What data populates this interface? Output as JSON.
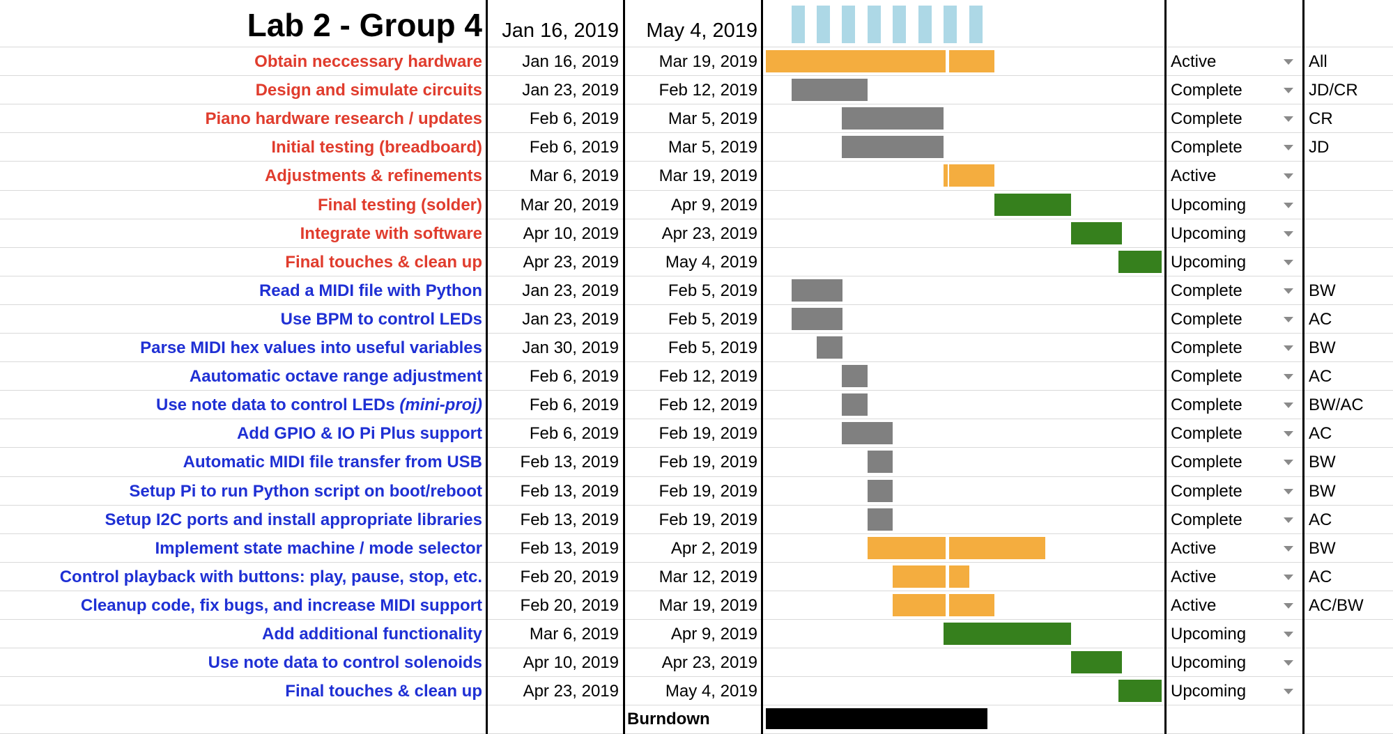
{
  "title": "Lab 2 - Group 4",
  "header": {
    "start_date": "Jan 16, 2019",
    "end_date": "May 4, 2019"
  },
  "colors": {
    "active": "#f4ad3f",
    "complete": "#808080",
    "upcoming": "#36801d",
    "timeline": "#add8e6",
    "red_task": "#e03c2d",
    "blue_task": "#1f30d4"
  },
  "tasks": [
    {
      "name": "Obtain neccessary hardware",
      "color": "red",
      "start": "Jan 16, 2019",
      "end": "Mar 19, 2019",
      "status": "Active",
      "owner": "All"
    },
    {
      "name": "Design and simulate circuits",
      "color": "red",
      "start": "Jan 23, 2019",
      "end": "Feb 12, 2019",
      "status": "Complete",
      "owner": "JD/CR"
    },
    {
      "name": "Piano hardware research / updates",
      "color": "red",
      "start": "Feb 6, 2019",
      "end": "Mar 5, 2019",
      "status": "Complete",
      "owner": "CR"
    },
    {
      "name": "Initial testing (breadboard)",
      "color": "red",
      "start": "Feb 6, 2019",
      "end": "Mar 5, 2019",
      "status": "Complete",
      "owner": "JD"
    },
    {
      "name": "Adjustments & refinements",
      "color": "red",
      "start": "Mar 6, 2019",
      "end": "Mar 19, 2019",
      "status": "Active",
      "owner": ""
    },
    {
      "name": "Final testing (solder)",
      "color": "red",
      "start": "Mar 20, 2019",
      "end": "Apr 9, 2019",
      "status": "Upcoming",
      "owner": ""
    },
    {
      "name": "Integrate with software",
      "color": "red",
      "start": "Apr 10, 2019",
      "end": "Apr 23, 2019",
      "status": "Upcoming",
      "owner": ""
    },
    {
      "name": "Final touches & clean up",
      "color": "red",
      "start": "Apr 23, 2019",
      "end": "May 4, 2019",
      "status": "Upcoming",
      "owner": ""
    },
    {
      "name": "Read a MIDI file with Python",
      "color": "blue",
      "start": "Jan 23, 2019",
      "end": "Feb 5, 2019",
      "status": "Complete",
      "owner": "BW"
    },
    {
      "name": "Use BPM to control LEDs",
      "color": "blue",
      "start": "Jan 23, 2019",
      "end": "Feb 5, 2019",
      "status": "Complete",
      "owner": "AC"
    },
    {
      "name": "Parse MIDI hex values into useful variables",
      "color": "blue",
      "start": "Jan 30, 2019",
      "end": "Feb 5, 2019",
      "status": "Complete",
      "owner": "BW"
    },
    {
      "name": "Aautomatic octave range adjustment",
      "color": "blue",
      "start": "Feb 6, 2019",
      "end": "Feb 12, 2019",
      "status": "Complete",
      "owner": "AC"
    },
    {
      "name": "Use note data to control LEDs",
      "name_suffix": "(mini-proj)",
      "color": "blue",
      "start": "Feb 6, 2019",
      "end": "Feb 12, 2019",
      "status": "Complete",
      "owner": "BW/AC"
    },
    {
      "name": "Add GPIO & IO Pi Plus support",
      "color": "blue",
      "start": "Feb 6, 2019",
      "end": "Feb 19, 2019",
      "status": "Complete",
      "owner": "AC"
    },
    {
      "name": "Automatic MIDI file transfer from USB",
      "color": "blue",
      "start": "Feb 13, 2019",
      "end": "Feb 19, 2019",
      "status": "Complete",
      "owner": "BW"
    },
    {
      "name": "Setup Pi to run Python script on boot/reboot",
      "color": "blue",
      "start": "Feb 13, 2019",
      "end": "Feb 19, 2019",
      "status": "Complete",
      "owner": "BW"
    },
    {
      "name": "Setup I2C ports and install appropriate libraries",
      "color": "blue",
      "start": "Feb 13, 2019",
      "end": "Feb 19, 2019",
      "status": "Complete",
      "owner": "AC"
    },
    {
      "name": "Implement state machine / mode selector",
      "color": "blue",
      "start": "Feb 13, 2019",
      "end": "Apr 2, 2019",
      "status": "Active",
      "owner": "BW"
    },
    {
      "name": "Control playback with buttons: play, pause, stop, etc.",
      "color": "blue",
      "start": "Feb 20, 2019",
      "end": "Mar 12, 2019",
      "status": "Active",
      "owner": "AC"
    },
    {
      "name": "Cleanup code, fix bugs, and increase MIDI support",
      "color": "blue",
      "start": "Feb 20, 2019",
      "end": "Mar 19, 2019",
      "status": "Active",
      "owner": "AC/BW"
    },
    {
      "name": "Add additional functionality",
      "color": "blue",
      "start": "Mar 6, 2019",
      "end": "Apr 9, 2019",
      "status": "Upcoming",
      "owner": ""
    },
    {
      "name": "Use note data to control solenoids",
      "color": "blue",
      "start": "Apr 10, 2019",
      "end": "Apr 23, 2019",
      "status": "Upcoming",
      "owner": ""
    },
    {
      "name": "Final touches & clean up",
      "color": "blue",
      "start": "Apr 23, 2019",
      "end": "May 4, 2019",
      "status": "Upcoming",
      "owner": ""
    }
  ],
  "burndown": {
    "label": "Burndown",
    "progress_fraction": 0.56
  }
}
